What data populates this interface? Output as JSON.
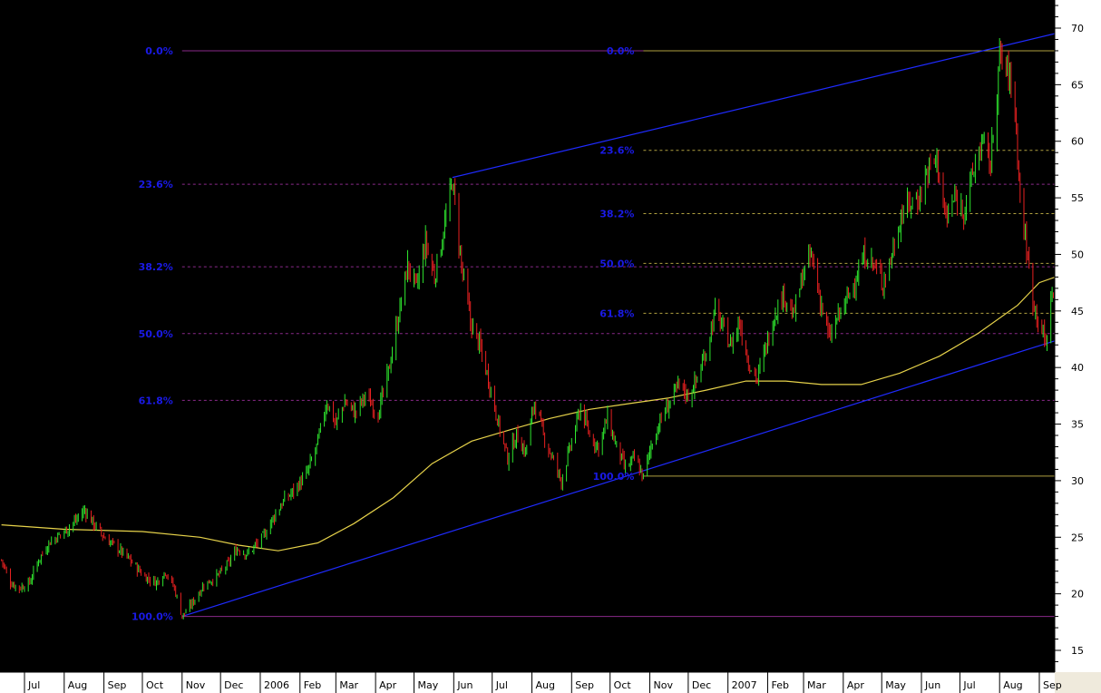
{
  "chart_data": {
    "type": "candlestick",
    "title": "",
    "xlabel": "",
    "ylabel": "",
    "ylim": [
      13,
      73
    ],
    "grid": false,
    "colors": {
      "background": "#000000",
      "up": "#2ee62e",
      "down": "#e62020",
      "moving_average": "#e6d24a",
      "trendline": "#1f2bff",
      "fib_set_1": "#8a2a8a",
      "fib_set_2": "#b0a040",
      "fib_labels": "#1a1ae6",
      "axis_panel": "#ffffff"
    },
    "y_ticks": [
      "15",
      "20",
      "25",
      "30",
      "35",
      "40",
      "45",
      "50",
      "55",
      "60",
      "65",
      "70"
    ],
    "x_ticks": [
      {
        "label": "Jul",
        "date": "2005-07-01"
      },
      {
        "label": "Aug",
        "date": "2005-08-01"
      },
      {
        "label": "Sep",
        "date": "2005-09-01"
      },
      {
        "label": "Oct",
        "date": "2005-10-01"
      },
      {
        "label": "Nov",
        "date": "2005-11-01"
      },
      {
        "label": "Dec",
        "date": "2005-12-01"
      },
      {
        "label": "2006",
        "date": "2006-01-01"
      },
      {
        "label": "Feb",
        "date": "2006-02-01"
      },
      {
        "label": "Mar",
        "date": "2006-03-01"
      },
      {
        "label": "Apr",
        "date": "2006-04-01"
      },
      {
        "label": "May",
        "date": "2006-05-01"
      },
      {
        "label": "Jun",
        "date": "2006-06-01"
      },
      {
        "label": "Jul",
        "date": "2006-07-01"
      },
      {
        "label": "Aug",
        "date": "2006-08-01"
      },
      {
        "label": "Sep",
        "date": "2006-09-01"
      },
      {
        "label": "Oct",
        "date": "2006-10-01"
      },
      {
        "label": "Nov",
        "date": "2006-11-01"
      },
      {
        "label": "Dec",
        "date": "2006-12-01"
      },
      {
        "label": "2007",
        "date": "2007-01-01"
      },
      {
        "label": "Feb",
        "date": "2007-02-01"
      },
      {
        "label": "Mar",
        "date": "2007-03-01"
      },
      {
        "label": "Apr",
        "date": "2007-04-01"
      },
      {
        "label": "May",
        "date": "2007-05-01"
      },
      {
        "label": "Jun",
        "date": "2007-06-01"
      },
      {
        "label": "Jul",
        "date": "2007-07-01"
      },
      {
        "label": "Aug",
        "date": "2007-08-01"
      },
      {
        "label": "Sep",
        "date": "2007-09-01"
      }
    ],
    "price_path": [
      [
        "2005-06-13",
        23.0
      ],
      [
        "2005-06-20",
        21.0
      ],
      [
        "2005-06-27",
        20.5
      ],
      [
        "2005-07-05",
        21.0
      ],
      [
        "2005-07-12",
        23.0
      ],
      [
        "2005-07-20",
        24.5
      ],
      [
        "2005-08-01",
        25.5
      ],
      [
        "2005-08-10",
        26.5
      ],
      [
        "2005-08-17",
        27.4
      ],
      [
        "2005-08-24",
        26.2
      ],
      [
        "2005-09-01",
        25.0
      ],
      [
        "2005-09-12",
        24.0
      ],
      [
        "2005-09-21",
        23.0
      ],
      [
        "2005-10-03",
        21.5
      ],
      [
        "2005-10-12",
        21.0
      ],
      [
        "2005-10-19",
        22.0
      ],
      [
        "2005-10-26",
        20.5
      ],
      [
        "2005-11-01",
        18.0
      ],
      [
        "2005-11-09",
        19.2
      ],
      [
        "2005-11-18",
        20.8
      ],
      [
        "2005-11-28",
        21.5
      ],
      [
        "2005-12-06",
        22.5
      ],
      [
        "2005-12-14",
        24.0
      ],
      [
        "2005-12-22",
        23.5
      ],
      [
        "2006-01-03",
        25.0
      ],
      [
        "2006-01-10",
        26.5
      ],
      [
        "2006-01-18",
        28.0
      ],
      [
        "2006-01-26",
        29.0
      ],
      [
        "2006-02-06",
        30.5
      ],
      [
        "2006-02-14",
        33.0
      ],
      [
        "2006-02-22",
        37.0
      ],
      [
        "2006-03-01",
        35.0
      ],
      [
        "2006-03-08",
        37.0
      ],
      [
        "2006-03-16",
        36.0
      ],
      [
        "2006-03-24",
        37.5
      ],
      [
        "2006-04-03",
        36.0
      ],
      [
        "2006-04-10",
        39.0
      ],
      [
        "2006-04-18",
        44.0
      ],
      [
        "2006-04-26",
        49.0
      ],
      [
        "2006-05-03",
        47.0
      ],
      [
        "2006-05-10",
        51.0
      ],
      [
        "2006-05-17",
        48.0
      ],
      [
        "2006-05-24",
        52.0
      ],
      [
        "2006-05-31",
        56.5
      ],
      [
        "2006-06-07",
        49.0
      ],
      [
        "2006-06-14",
        44.0
      ],
      [
        "2006-06-21",
        42.0
      ],
      [
        "2006-06-28",
        39.0
      ],
      [
        "2006-07-06",
        35.0
      ],
      [
        "2006-07-13",
        32.0
      ],
      [
        "2006-07-20",
        34.0
      ],
      [
        "2006-07-27",
        32.5
      ],
      [
        "2006-08-03",
        37.0
      ],
      [
        "2006-08-10",
        34.0
      ],
      [
        "2006-08-17",
        32.0
      ],
      [
        "2006-08-24",
        30.0
      ],
      [
        "2006-08-31",
        33.0
      ],
      [
        "2006-09-08",
        36.5
      ],
      [
        "2006-09-15",
        34.0
      ],
      [
        "2006-09-22",
        33.0
      ],
      [
        "2006-09-29",
        35.5
      ],
      [
        "2006-10-06",
        33.0
      ],
      [
        "2006-10-13",
        31.0
      ],
      [
        "2006-10-20",
        32.0
      ],
      [
        "2006-10-27",
        30.3
      ],
      [
        "2006-11-03",
        33.5
      ],
      [
        "2006-11-10",
        35.5
      ],
      [
        "2006-11-17",
        37.0
      ],
      [
        "2006-11-24",
        38.5
      ],
      [
        "2006-12-01",
        37.5
      ],
      [
        "2006-12-08",
        39.0
      ],
      [
        "2006-12-15",
        41.5
      ],
      [
        "2006-12-22",
        45.0
      ],
      [
        "2007-01-03",
        42.0
      ],
      [
        "2007-01-10",
        44.0
      ],
      [
        "2007-01-17",
        40.5
      ],
      [
        "2007-01-24",
        39.0
      ],
      [
        "2007-01-31",
        42.0
      ],
      [
        "2007-02-07",
        45.0
      ],
      [
        "2007-02-14",
        46.5
      ],
      [
        "2007-02-21",
        44.5
      ],
      [
        "2007-02-28",
        48.0
      ],
      [
        "2007-03-07",
        50.0
      ],
      [
        "2007-03-14",
        46.0
      ],
      [
        "2007-03-21",
        42.5
      ],
      [
        "2007-03-28",
        44.5
      ],
      [
        "2007-04-04",
        46.0
      ],
      [
        "2007-04-11",
        48.0
      ],
      [
        "2007-04-18",
        50.0
      ],
      [
        "2007-04-25",
        49.0
      ],
      [
        "2007-05-02",
        47.5
      ],
      [
        "2007-05-09",
        50.0
      ],
      [
        "2007-05-16",
        53.5
      ],
      [
        "2007-05-23",
        54.5
      ],
      [
        "2007-05-30",
        55.0
      ],
      [
        "2007-06-06",
        57.5
      ],
      [
        "2007-06-13",
        58.5
      ],
      [
        "2007-06-20",
        53.0
      ],
      [
        "2007-06-27",
        55.0
      ],
      [
        "2007-07-04",
        54.0
      ],
      [
        "2007-07-11",
        57.0
      ],
      [
        "2007-07-18",
        60.0
      ],
      [
        "2007-07-25",
        58.0
      ],
      [
        "2007-08-01",
        67.5
      ],
      [
        "2007-08-08",
        66.0
      ],
      [
        "2007-08-13",
        63.0
      ],
      [
        "2007-08-17",
        55.0
      ],
      [
        "2007-08-22",
        50.5
      ],
      [
        "2007-08-27",
        46.0
      ],
      [
        "2007-09-01",
        44.0
      ],
      [
        "2007-09-06",
        42.0
      ],
      [
        "2007-09-11",
        47.0
      ],
      [
        "2007-09-16",
        43.0
      ],
      [
        "2007-09-21",
        48.0
      ],
      [
        "2007-09-26",
        49.0
      ]
    ],
    "moving_average": [
      [
        "2005-06-13",
        26.1
      ],
      [
        "2005-08-01",
        25.7
      ],
      [
        "2005-10-01",
        25.5
      ],
      [
        "2005-11-15",
        25.0
      ],
      [
        "2005-12-15",
        24.3
      ],
      [
        "2006-01-15",
        23.8
      ],
      [
        "2006-02-15",
        24.5
      ],
      [
        "2006-03-15",
        26.2
      ],
      [
        "2006-04-15",
        28.5
      ],
      [
        "2006-05-15",
        31.5
      ],
      [
        "2006-06-15",
        33.5
      ],
      [
        "2006-07-15",
        34.5
      ],
      [
        "2006-08-15",
        35.5
      ],
      [
        "2006-09-15",
        36.3
      ],
      [
        "2006-10-15",
        36.8
      ],
      [
        "2006-11-15",
        37.3
      ],
      [
        "2006-12-15",
        38.0
      ],
      [
        "2007-01-15",
        38.8
      ],
      [
        "2007-02-15",
        38.8
      ],
      [
        "2007-03-15",
        38.5
      ],
      [
        "2007-04-15",
        38.5
      ],
      [
        "2007-05-15",
        39.5
      ],
      [
        "2007-06-15",
        41.0
      ],
      [
        "2007-07-15",
        43.0
      ],
      [
        "2007-08-15",
        45.5
      ],
      [
        "2007-09-01",
        47.5
      ],
      [
        "2007-09-26",
        48.5
      ]
    ],
    "trendlines": [
      {
        "points": [
          [
            "2005-11-01",
            18.0
          ],
          [
            "2007-10-01",
            43.0
          ]
        ]
      },
      {
        "points": [
          [
            "2006-05-31",
            56.8
          ],
          [
            "2007-10-01",
            70.0
          ]
        ]
      }
    ],
    "fib_sets": [
      {
        "line_color": "#8a2a8a",
        "label_date": "2005-11-01",
        "line_start": "2005-11-01",
        "levels": [
          {
            "label": "0.0%",
            "value": 68.0
          },
          {
            "label": "23.6%",
            "value": 56.2
          },
          {
            "label": "38.2%",
            "value": 48.9
          },
          {
            "label": "50.0%",
            "value": 43.0
          },
          {
            "label": "61.8%",
            "value": 37.1
          },
          {
            "label": "100.0%",
            "value": 18.0
          }
        ]
      },
      {
        "line_color": "#b0a040",
        "label_date": "2006-10-27",
        "line_start": "2006-10-27",
        "levels": [
          {
            "label": "0.0%",
            "value": 68.0
          },
          {
            "label": "23.6%",
            "value": 59.2
          },
          {
            "label": "38.2%",
            "value": 53.6
          },
          {
            "label": "50.0%",
            "value": 49.2
          },
          {
            "label": "61.8%",
            "value": 44.8
          },
          {
            "label": "100.0%",
            "value": 30.4
          }
        ]
      }
    ]
  }
}
